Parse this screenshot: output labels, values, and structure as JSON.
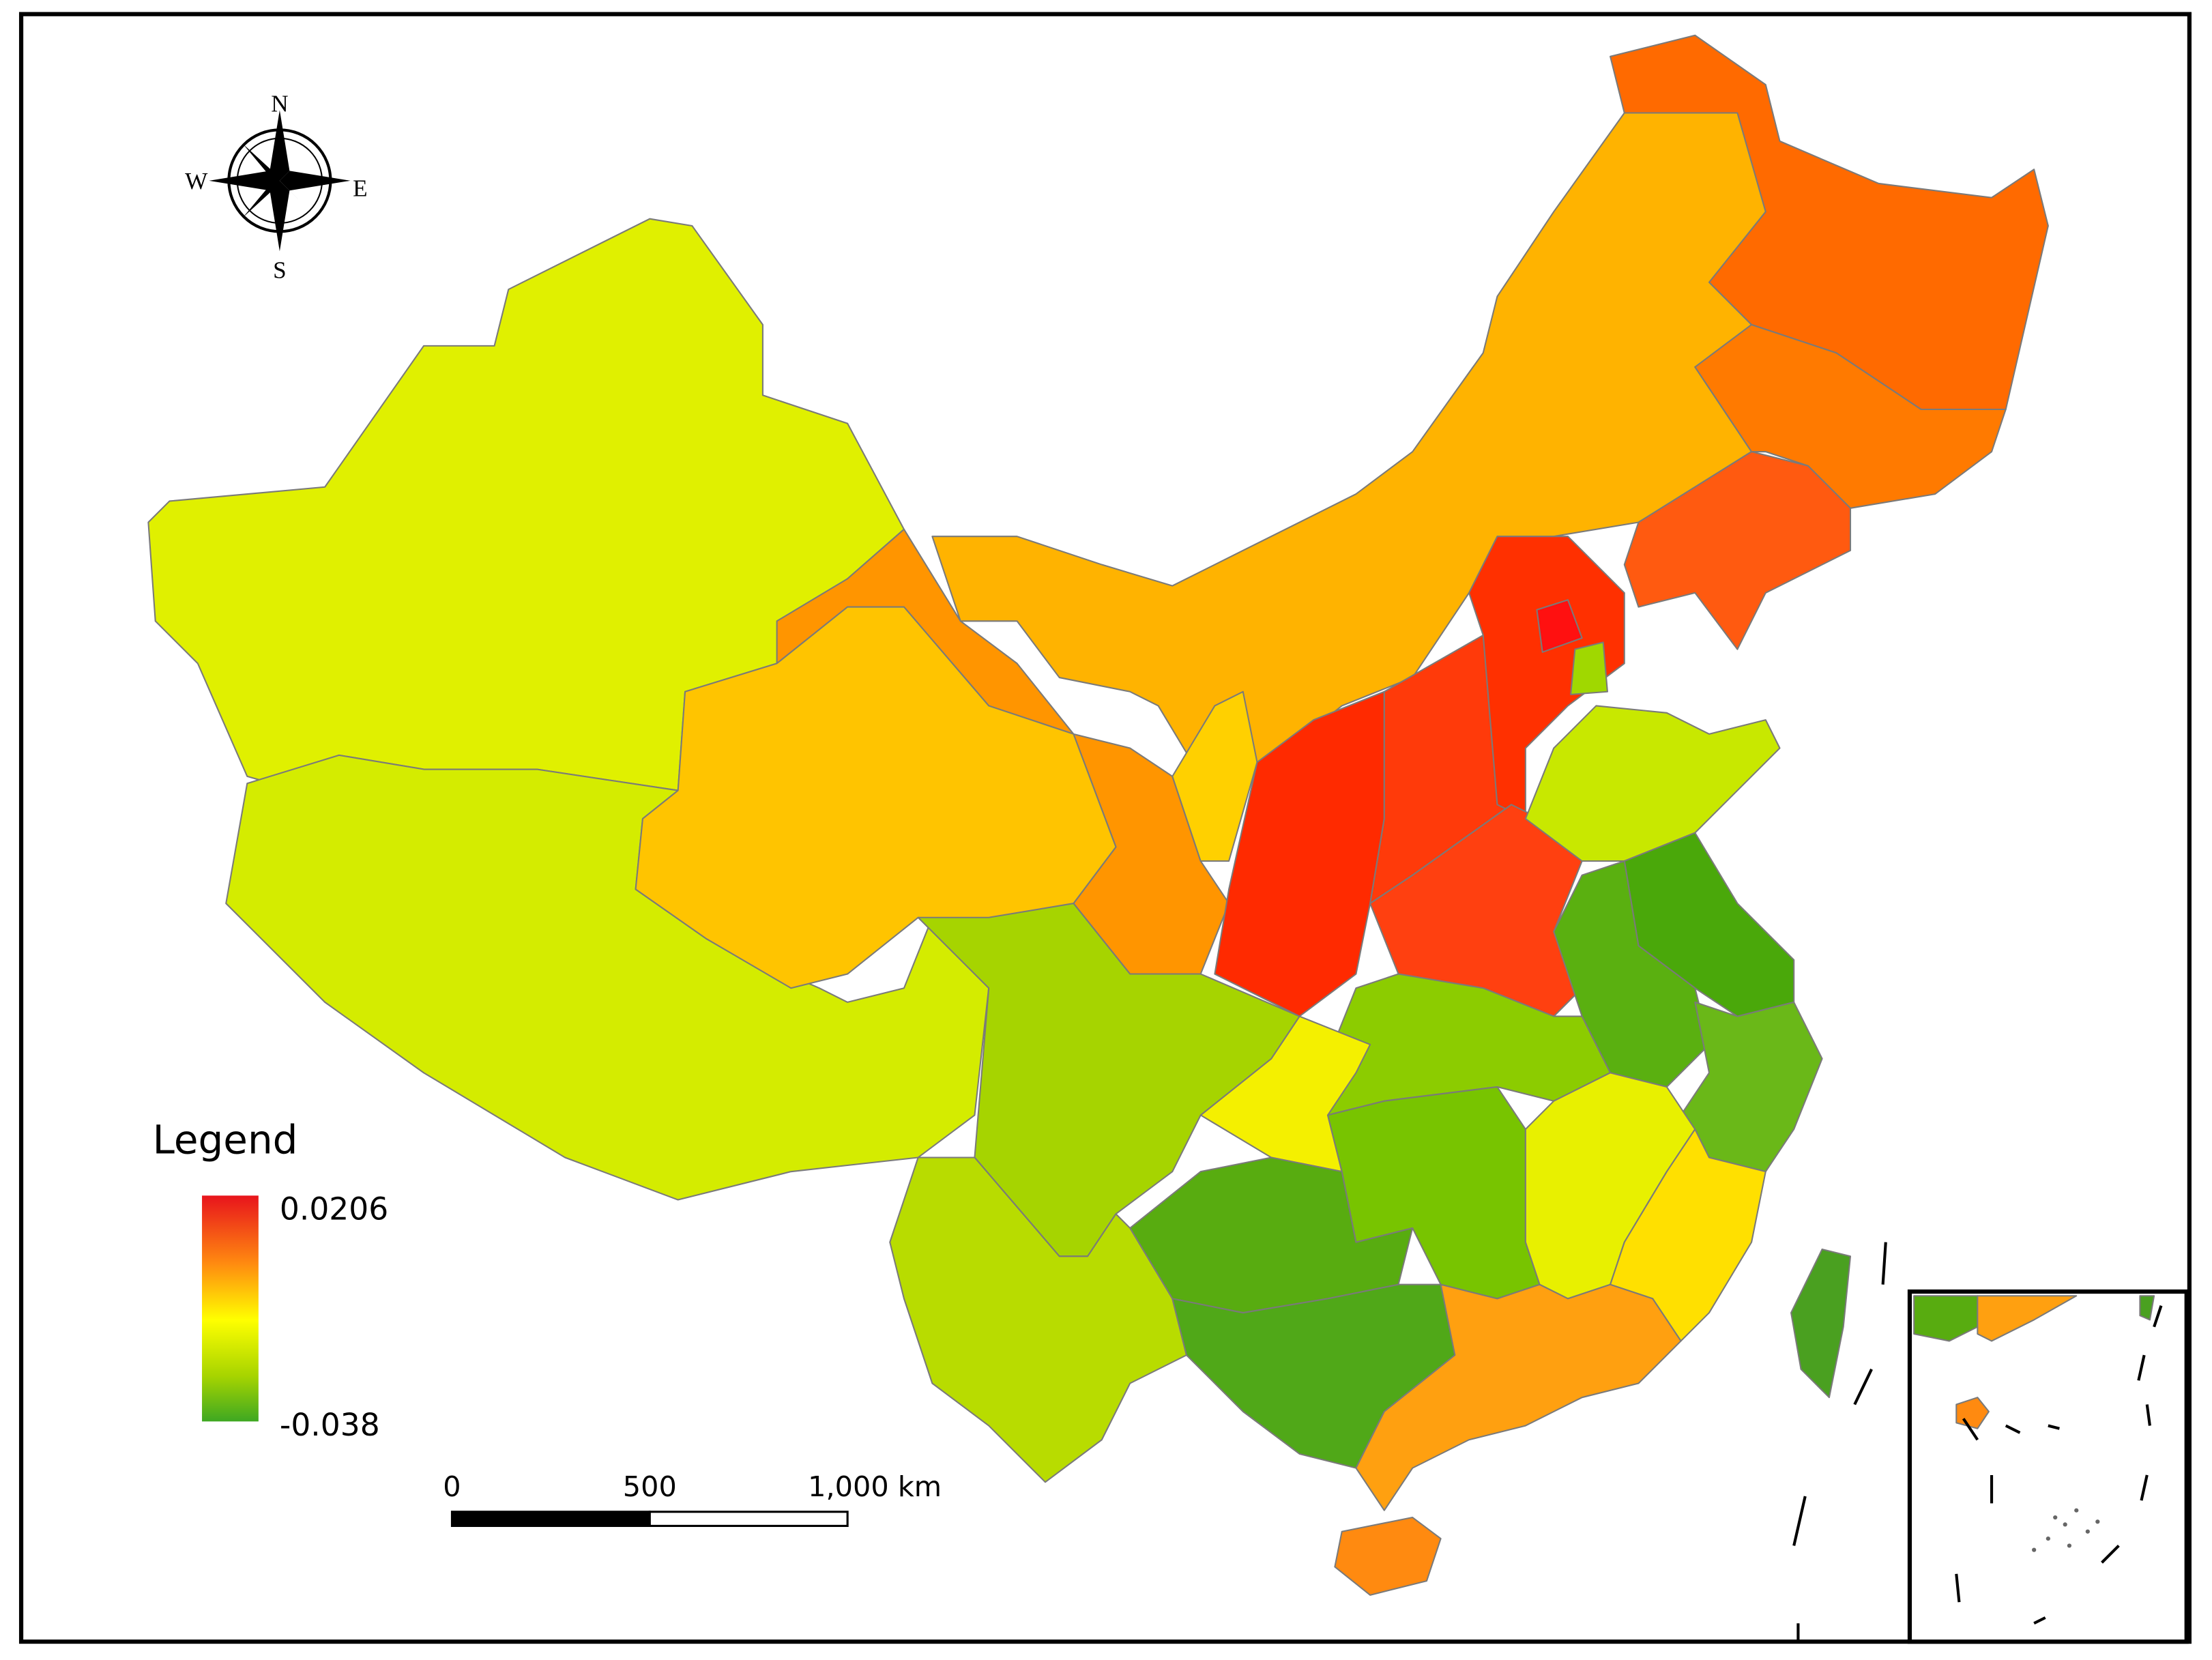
{
  "compass": {
    "north": "N",
    "south": "S",
    "east": "E",
    "west": "W"
  },
  "legend": {
    "title": "Legend",
    "max": 0.0206,
    "min": -0.038
  },
  "scale_bar": {
    "ticks": [
      0,
      500,
      {
        "value": 1000,
        "label": "1,000 km"
      }
    ]
  }
}
